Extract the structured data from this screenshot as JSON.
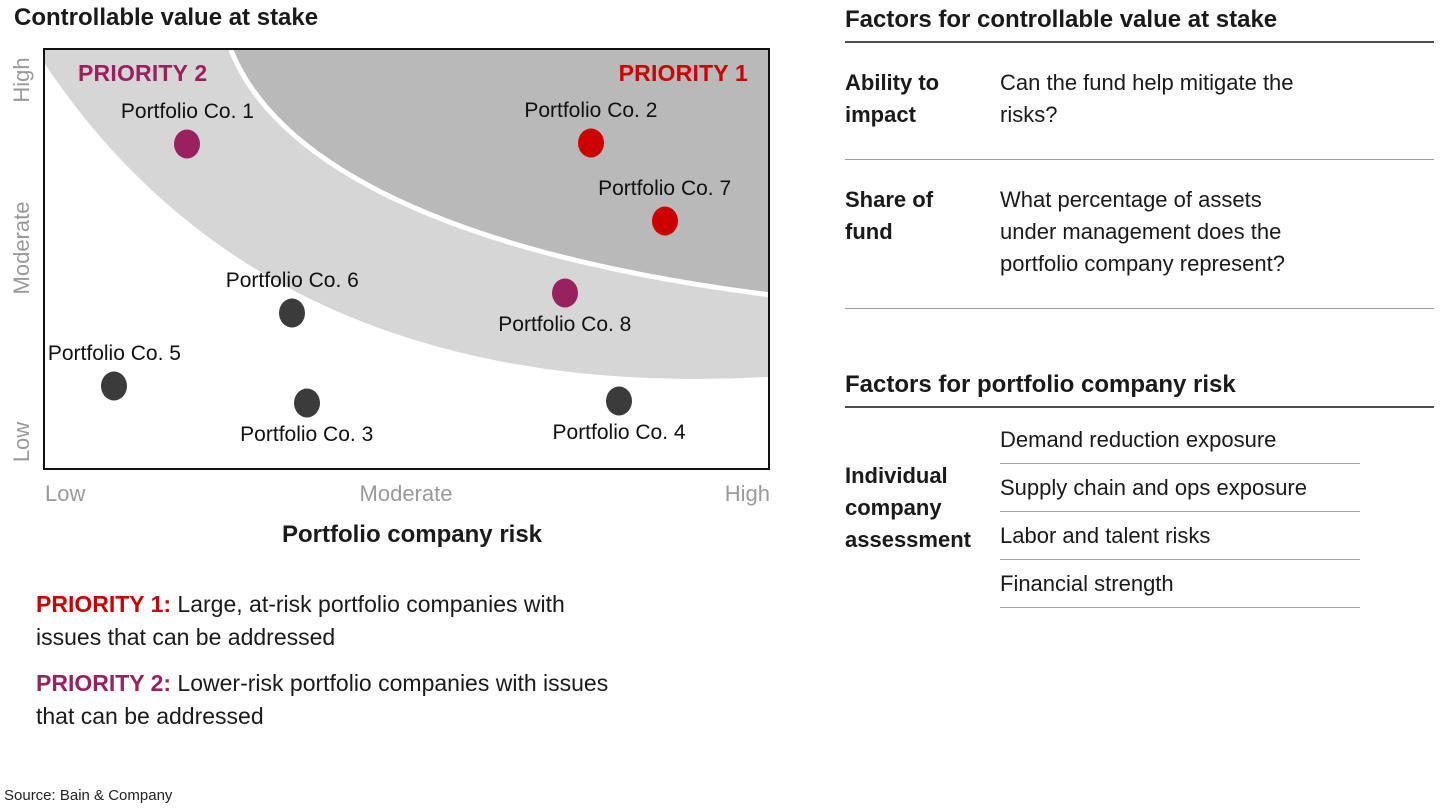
{
  "chart": {
    "title": "Controllable value at stake",
    "x_axis": {
      "title": "Portfolio company risk",
      "labels": [
        "Low",
        "Moderate",
        "High"
      ]
    },
    "y_axis": {
      "labels_top_to_bottom": [
        "High",
        "Moderate",
        "Low"
      ]
    },
    "priority_zone_labels": {
      "p1": "PRIORITY 1",
      "p2": "PRIORITY 2"
    }
  },
  "chart_data": {
    "type": "scatter",
    "title": "Controllable value at stake",
    "xlabel": "Portfolio company risk",
    "ylabel": "Controllable value at stake",
    "x_scale_categories": [
      "Low",
      "Moderate",
      "High"
    ],
    "y_scale_categories": [
      "Low",
      "Moderate",
      "High"
    ],
    "zones": [
      {
        "name": "PRIORITY 1",
        "description": "dark gray band, upper-right corner",
        "color": "#B9B9B9"
      },
      {
        "name": "PRIORITY 2",
        "description": "light gray band between white area and Priority 1 band",
        "color": "#D6D6D6"
      }
    ],
    "points": [
      {
        "label": "Portfolio Co. 1",
        "priority": "priority2",
        "x_pct": 19.7,
        "y_pct": 22.5,
        "label_pos": "above"
      },
      {
        "label": "Portfolio Co. 2",
        "priority": "priority1",
        "x_pct": 75.5,
        "y_pct": 22.3,
        "label_pos": "above"
      },
      {
        "label": "Portfolio Co. 7",
        "priority": "priority1",
        "x_pct": 85.7,
        "y_pct": 40.8,
        "label_pos": "above"
      },
      {
        "label": "Portfolio Co. 6",
        "priority": "neutral",
        "x_pct": 34.2,
        "y_pct": 62.8,
        "label_pos": "above"
      },
      {
        "label": "Portfolio Co. 8",
        "priority": "priority2",
        "x_pct": 71.9,
        "y_pct": 58.1,
        "label_pos": "below"
      },
      {
        "label": "Portfolio Co. 5",
        "priority": "neutral",
        "x_pct": 9.6,
        "y_pct": 80.3,
        "label_pos": "above"
      },
      {
        "label": "Portfolio Co. 3",
        "priority": "neutral",
        "x_pct": 36.2,
        "y_pct": 84.4,
        "label_pos": "below"
      },
      {
        "label": "Portfolio Co. 4",
        "priority": "neutral",
        "x_pct": 79.4,
        "y_pct": 83.9,
        "label_pos": "below"
      }
    ]
  },
  "legend": {
    "p1_label": "PRIORITY 1:",
    "p1_text": " Large, at-risk portfolio companies with issues that can be addressed",
    "p2_label": "PRIORITY 2:",
    "p2_text": " Lower-risk portfolio companies with issues that can be addressed"
  },
  "source": "Source: Bain & Company",
  "right_panel": {
    "section1": {
      "heading": "Factors for controllable value at stake",
      "rows": [
        {
          "term": "Ability to impact",
          "desc": "Can the fund help mitigate the risks?"
        },
        {
          "term": "Share of fund",
          "desc": "What percentage of assets under management does the portfolio company represent?"
        }
      ]
    },
    "section2": {
      "heading": "Factors for portfolio company risk",
      "term": "Individual company assessment",
      "items": [
        "Demand reduction exposure",
        "Supply chain and ops exposure",
        "Labor and talent risks",
        "Financial strength"
      ]
    }
  },
  "colors": {
    "priority1": "#CC0000",
    "priority2": "#99215F",
    "neutral": "#3B3B3B",
    "zone_light": "#D6D6D6",
    "zone_dark": "#B9B9B9"
  }
}
